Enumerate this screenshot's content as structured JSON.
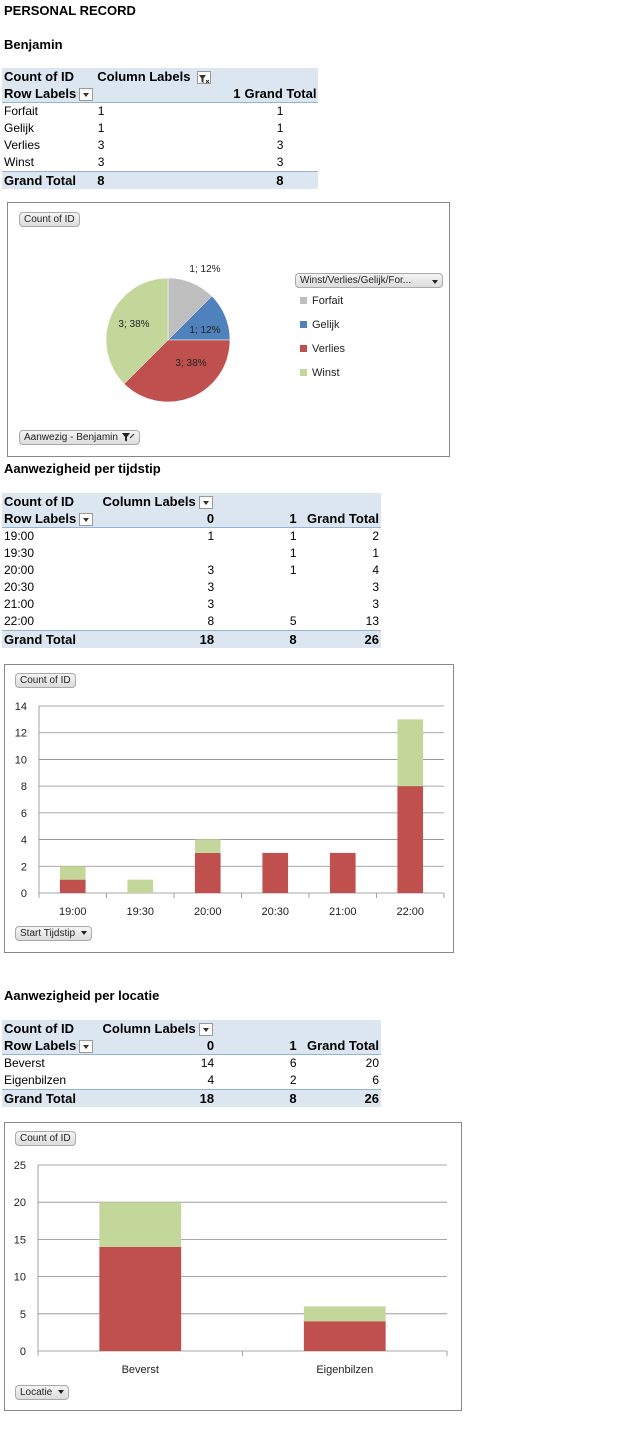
{
  "page_title": "PERSONAL RECORD",
  "section1": {
    "title": "Benjamin",
    "pivot": {
      "corner": "Count of ID",
      "column_labels": "Column Labels",
      "row_labels": "Row Labels",
      "col_headers": [
        "1",
        "Grand Total"
      ],
      "rows": [
        {
          "label": "Forfait",
          "values": [
            "1",
            "1"
          ]
        },
        {
          "label": "Gelijk",
          "values": [
            "1",
            "1"
          ]
        },
        {
          "label": "Verlies",
          "values": [
            "3",
            "3"
          ]
        },
        {
          "label": "Winst",
          "values": [
            "3",
            "3"
          ]
        }
      ],
      "total": {
        "label": "Grand Total",
        "values": [
          "8",
          "8"
        ]
      }
    },
    "chart": {
      "field_button": "Count of ID",
      "legend_button": "Winst/Verlies/Gelijk/For...",
      "filter_button": "Aanwezig - Benjamin"
    }
  },
  "section2": {
    "title": "Aanwezigheid per tijdstip",
    "pivot": {
      "corner": "Count of ID",
      "column_labels": "Column Labels",
      "row_labels": "Row Labels",
      "col_headers": [
        "0",
        "1",
        "Grand Total"
      ],
      "rows": [
        {
          "label": "19:00",
          "values": [
            "1",
            "1",
            "2"
          ]
        },
        {
          "label": "19:30",
          "values": [
            "",
            "1",
            "1"
          ]
        },
        {
          "label": "20:00",
          "values": [
            "3",
            "1",
            "4"
          ]
        },
        {
          "label": "20:30",
          "values": [
            "3",
            "",
            "3"
          ]
        },
        {
          "label": "21:00",
          "values": [
            "3",
            "",
            "3"
          ]
        },
        {
          "label": "22:00",
          "values": [
            "8",
            "5",
            "13"
          ]
        }
      ],
      "total": {
        "label": "Grand Total",
        "values": [
          "18",
          "8",
          "26"
        ]
      }
    },
    "chart": {
      "field_button": "Count of ID",
      "axis_button": "Start Tijdstip"
    }
  },
  "section3": {
    "title": "Aanwezigheid per locatie",
    "pivot": {
      "corner": "Count of ID",
      "column_labels": "Column Labels",
      "row_labels": "Row Labels",
      "col_headers": [
        "0",
        "1",
        "Grand Total"
      ],
      "rows": [
        {
          "label": "Beverst",
          "values": [
            "14",
            "6",
            "20"
          ]
        },
        {
          "label": "Eigenbilzen",
          "values": [
            "4",
            "2",
            "6"
          ]
        }
      ],
      "total": {
        "label": "Grand Total",
        "values": [
          "18",
          "8",
          "26"
        ]
      }
    },
    "chart": {
      "field_button": "Count of ID",
      "axis_button": "Locatie"
    }
  },
  "chart_data": [
    {
      "type": "pie",
      "categories": [
        "Forfait",
        "Gelijk",
        "Verlies",
        "Winst"
      ],
      "values": [
        1,
        1,
        3,
        3
      ],
      "data_labels": [
        "1; 12%",
        "1; 12%",
        "3; 38%",
        "3; 38%"
      ],
      "colors": [
        "#bfbfbf",
        "#4f81bd",
        "#c0504d",
        "#c4d79b"
      ],
      "legend_position": "right"
    },
    {
      "type": "bar",
      "stacked": true,
      "categories": [
        "19:00",
        "19:30",
        "20:00",
        "20:30",
        "21:00",
        "22:00"
      ],
      "series": [
        {
          "values": [
            1,
            0,
            3,
            3,
            3,
            8
          ],
          "color": "#c0504d"
        },
        {
          "values": [
            1,
            1,
            1,
            0,
            0,
            5
          ],
          "color": "#c4d79b"
        }
      ],
      "ylim": [
        0,
        14
      ],
      "yticks": [
        0,
        2,
        4,
        6,
        8,
        10,
        12,
        14
      ],
      "grid": true
    },
    {
      "type": "bar",
      "stacked": true,
      "categories": [
        "Beverst",
        "Eigenbilzen"
      ],
      "series": [
        {
          "values": [
            14,
            4
          ],
          "color": "#c0504d"
        },
        {
          "values": [
            6,
            2
          ],
          "color": "#c4d79b"
        }
      ],
      "ylim": [
        0,
        25
      ],
      "yticks": [
        0,
        5,
        10,
        15,
        20,
        25
      ],
      "grid": true
    }
  ]
}
